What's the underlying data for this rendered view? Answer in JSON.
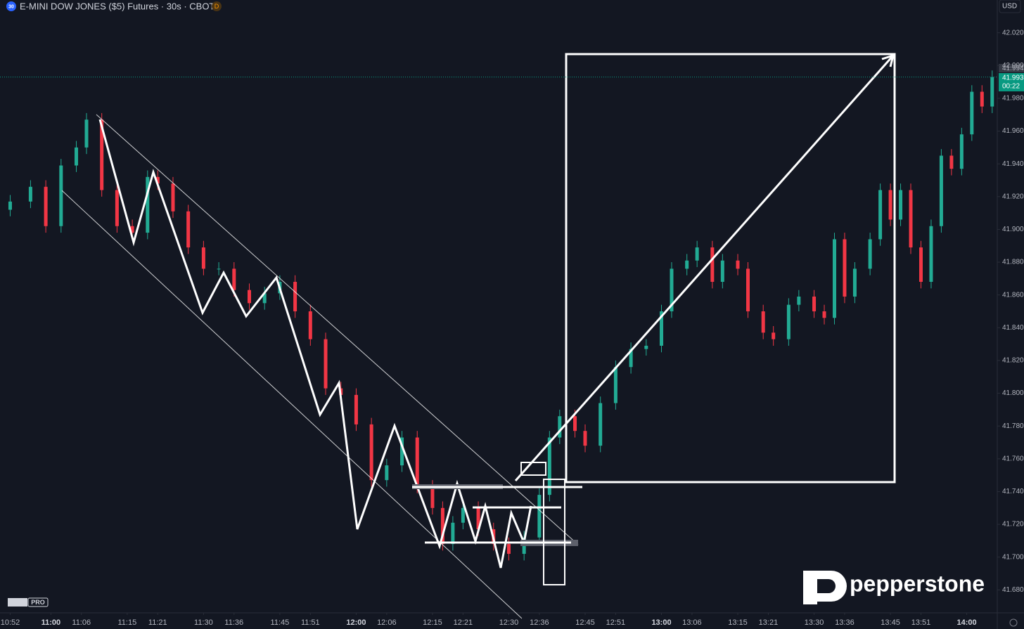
{
  "chart_data": {
    "type": "candlestick",
    "title": "E-MINI DOW JONES ($5) Futures · 30s · CBOT",
    "symbol_badge": "30",
    "source_badge": "D",
    "currency": "USD",
    "last_price": {
      "value": 41993,
      "label": "41.993"
    },
    "prev_price": {
      "value": 41994,
      "label": "41.994"
    },
    "countdown": "00:22",
    "up_color": "#22ab94",
    "down_color": "#f23645",
    "grid": false,
    "x": [
      652,
      656,
      659,
      662,
      665,
      667,
      670,
      673,
      676,
      679,
      681,
      684,
      687,
      690,
      693,
      696,
      699,
      702,
      705,
      708,
      711,
      714,
      717,
      720,
      723,
      726,
      729,
      732,
      735,
      737,
      739,
      741,
      744,
      747,
      750,
      753,
      756,
      758,
      760,
      763,
      765,
      768,
      771,
      774,
      777,
      780,
      782,
      785,
      787,
      790,
      792,
      795,
      797,
      800,
      802,
      805,
      807,
      810,
      812,
      814,
      816,
      818,
      821,
      823,
      825,
      827,
      829,
      831,
      833,
      835,
      837,
      839,
      841,
      843,
      845
    ],
    "open": [
      41912,
      41917,
      41926,
      41902,
      41939,
      41950,
      41967,
      41924,
      41902,
      41898,
      41932,
      41928,
      41911,
      41889,
      41876,
      41876,
      41863,
      41855,
      41861,
      41868,
      41850,
      41833,
      41803,
      41799,
      41781,
      41747,
      41756,
      41773,
      41743,
      41730,
      41708,
      41721,
      41730,
      41717,
      41708,
      41702,
      41712,
      41738,
      41773,
      41786,
      41777,
      41768,
      41794,
      41816,
      41827,
      41829,
      41850,
      41876,
      41881,
      41889,
      41868,
      41881,
      41876,
      41850,
      41837,
      41833,
      41854,
      41859,
      41850,
      41846,
      41894,
      41859,
      41876,
      41894,
      41924,
      41906,
      41924,
      41889,
      41868,
      41902,
      41945,
      41937,
      41958,
      41984,
      41975
    ],
    "high": [
      41921,
      41930,
      41930,
      41943,
      41954,
      41971,
      41971,
      41928,
      41906,
      41936,
      41936,
      41932,
      41915,
      41893,
      41880,
      41880,
      41867,
      41865,
      41872,
      41872,
      41854,
      41837,
      41807,
      41803,
      41785,
      41760,
      41777,
      41777,
      41747,
      41734,
      41725,
      41734,
      41734,
      41721,
      41712,
      41716,
      41742,
      41777,
      41790,
      41790,
      41781,
      41798,
      41820,
      41831,
      41833,
      41854,
      41880,
      41885,
      41893,
      41893,
      41885,
      41885,
      41880,
      41854,
      41841,
      41858,
      41863,
      41863,
      41854,
      41898,
      41898,
      41880,
      41898,
      41928,
      41928,
      41928,
      41928,
      41893,
      41906,
      41949,
      41949,
      41962,
      41988,
      41988,
      41997
    ],
    "low": [
      41908,
      41913,
      41898,
      41898,
      41935,
      41946,
      41920,
      41898,
      41894,
      41894,
      41924,
      41907,
      41885,
      41872,
      41872,
      41859,
      41851,
      41851,
      41857,
      41846,
      41829,
      41799,
      41795,
      41777,
      41743,
      41743,
      41752,
      41739,
      41726,
      41704,
      41704,
      41717,
      41713,
      41704,
      41698,
      41698,
      41708,
      41734,
      41769,
      41773,
      41764,
      41764,
      41790,
      41812,
      41823,
      41825,
      41846,
      41872,
      41877,
      41864,
      41864,
      41872,
      41846,
      41833,
      41829,
      41829,
      41850,
      41846,
      41842,
      41842,
      41855,
      41855,
      41872,
      41890,
      41902,
      41902,
      41885,
      41864,
      41864,
      41898,
      41933,
      41933,
      41954,
      41971,
      41971
    ],
    "close": [
      41917,
      41926,
      41902,
      41939,
      41950,
      41967,
      41924,
      41902,
      41898,
      41932,
      41928,
      41911,
      41889,
      41876,
      41876,
      41863,
      41855,
      41861,
      41868,
      41850,
      41833,
      41803,
      41799,
      41781,
      41747,
      41756,
      41773,
      41743,
      41730,
      41708,
      41721,
      41730,
      41717,
      41708,
      41702,
      41712,
      41738,
      41773,
      41786,
      41777,
      41768,
      41794,
      41816,
      41827,
      41829,
      41850,
      41876,
      41881,
      41889,
      41868,
      41881,
      41876,
      41850,
      41837,
      41833,
      41854,
      41859,
      41850,
      41846,
      41894,
      41859,
      41876,
      41894,
      41924,
      41906,
      41924,
      41889,
      41868,
      41902,
      41945,
      41937,
      41958,
      41984,
      41975,
      41993
    ],
    "xlim": [
      650,
      846
    ],
    "ylim": [
      41666,
      42040
    ],
    "xticks": [
      {
        "value": 652,
        "label": "10:52"
      },
      {
        "value": 660,
        "label": "11:00"
      },
      {
        "value": 666,
        "label": "11:06"
      },
      {
        "value": 675,
        "label": "11:15"
      },
      {
        "value": 681,
        "label": "11:21"
      },
      {
        "value": 690,
        "label": "11:30"
      },
      {
        "value": 696,
        "label": "11:36"
      },
      {
        "value": 705,
        "label": "11:45"
      },
      {
        "value": 711,
        "label": "11:51"
      },
      {
        "value": 720,
        "label": "12:00"
      },
      {
        "value": 726,
        "label": "12:06"
      },
      {
        "value": 735,
        "label": "12:15"
      },
      {
        "value": 741,
        "label": "12:21"
      },
      {
        "value": 750,
        "label": "12:30"
      },
      {
        "value": 756,
        "label": "12:36"
      },
      {
        "value": 765,
        "label": "12:45"
      },
      {
        "value": 771,
        "label": "12:51"
      },
      {
        "value": 780,
        "label": "13:00"
      },
      {
        "value": 786,
        "label": "13:06"
      },
      {
        "value": 795,
        "label": "13:15"
      },
      {
        "value": 801,
        "label": "13:21"
      },
      {
        "value": 810,
        "label": "13:30"
      },
      {
        "value": 816,
        "label": "13:36"
      },
      {
        "value": 825,
        "label": "13:45"
      },
      {
        "value": 831,
        "label": "13:51"
      },
      {
        "value": 840,
        "label": "14:00"
      }
    ],
    "yticks": [
      {
        "value": 41680,
        "label": "41.680"
      },
      {
        "value": 41700,
        "label": "41.700"
      },
      {
        "value": 41720,
        "label": "41.720"
      },
      {
        "value": 41740,
        "label": "41.740"
      },
      {
        "value": 41760,
        "label": "41.760"
      },
      {
        "value": 41780,
        "label": "41.780"
      },
      {
        "value": 41800,
        "label": "41.800"
      },
      {
        "value": 41820,
        "label": "41.820"
      },
      {
        "value": 41840,
        "label": "41.840"
      },
      {
        "value": 41860,
        "label": "41.860"
      },
      {
        "value": 41880,
        "label": "41.880"
      },
      {
        "value": 41900,
        "label": "41.900"
      },
      {
        "value": 41920,
        "label": "41.920"
      },
      {
        "value": 41940,
        "label": "41.940"
      },
      {
        "value": 41960,
        "label": "41.960"
      },
      {
        "value": 41980,
        "label": "41.980"
      },
      {
        "value": 42000,
        "label": "42.000"
      },
      {
        "value": 42020,
        "label": "42.020"
      }
    ]
  },
  "watermark": "pepperstone",
  "tv_badge": "PRO"
}
